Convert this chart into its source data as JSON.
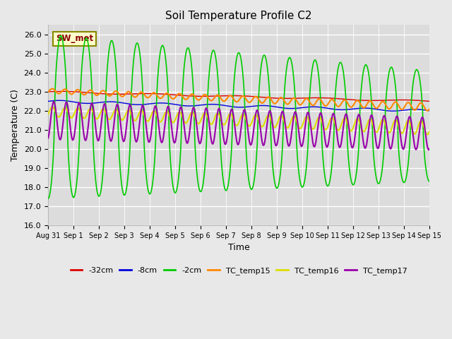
{
  "title": "Soil Temperature Profile C2",
  "xlabel": "Time",
  "ylabel": "Temperature (C)",
  "ylim": [
    16.0,
    26.5
  ],
  "yticks": [
    16.0,
    17.0,
    18.0,
    19.0,
    20.0,
    21.0,
    22.0,
    23.0,
    24.0,
    25.0,
    26.0
  ],
  "fig_bg_color": "#e8e8e8",
  "plot_bg_color": "#dcdcdc",
  "colors": {
    "-32cm": "#dd0000",
    "-8cm": "#0000dd",
    "-2cm": "#00cc00",
    "TC_temp15": "#ff8800",
    "TC_temp16": "#dddd00",
    "TC_temp17": "#9900aa"
  },
  "x_tick_labels": [
    "Aug 31",
    "Sep 1",
    "Sep 2",
    "Sep 3",
    "Sep 4",
    "Sep 5",
    "Sep 6",
    "Sep 7",
    "Sep 8",
    "Sep 9",
    "Sep 10",
    "Sep 11",
    "Sep 12",
    "Sep 13",
    "Sep 14",
    "Sep 15"
  ],
  "sw_met_box_color": "#ffffcc",
  "sw_met_text_color": "#880000",
  "sw_met_border_color": "#888800"
}
